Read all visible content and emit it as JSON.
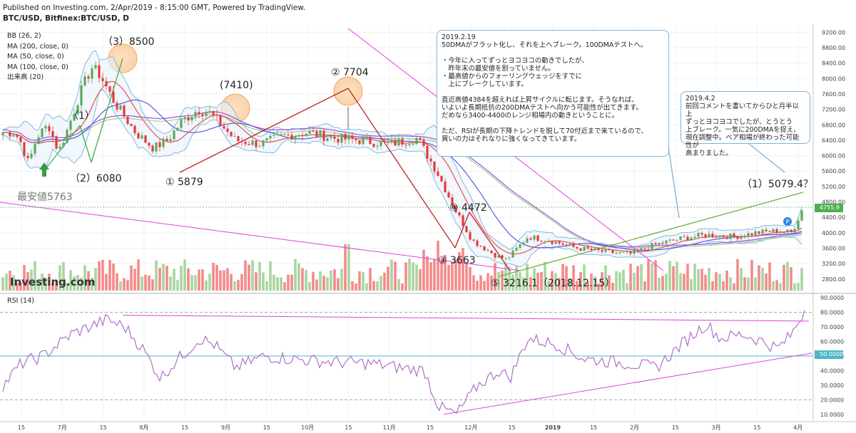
{
  "header": {
    "published": "Published on Investing.com, 2/Apr/2019 - 8:15:00 GMT, Powered by TradingView.",
    "symbol": "BTC/USD, Bitfinex:BTC/USD, D"
  },
  "indicators": [
    "BB (26, 2)",
    "MA (200, close, 0)",
    "MA (50, close, 0)",
    "MA (100, close, 0)",
    "出来高 (20)"
  ],
  "logo": "Investing.com",
  "rsi_label": "RSI (14)",
  "annotations": {
    "p3": "（3）8500",
    "p1": "（1）",
    "p2": "（2）6080",
    "low1": "① 5879",
    "p7410": "(7410)",
    "p7704": "② 7704",
    "p4472": "④ 4472",
    "p3663": "③ 3663",
    "p3216": "⑤ 3216.1（2018.12.15）",
    "target": "（1）5079.4？",
    "min": "最安値5763"
  },
  "notes": {
    "feb": "2019.2.19\n50DMAがフラット化し、それを上へブレーク。100DMAテストへ。\n\n・今年に入ってずっとヨコヨコの動きでしたが、\n　昨年末の最安値を割っていません。\n・最高値からのフォーリングウェッジをすでに\n　上にブレークしています。\n\n直近高値4384を超えれば上昇サイクルに転じます。そうなれば、\nいよいよ長期抵抗の200DMAテストへ向かう可能性が出てきます。\nだめなら3400-4400のレンジ相場内の動きということに。\n\nただ、RSIが長期の下降トレンドを脱して70付近まで来ているので、\n買いの力はそれなりに強くなってきています。",
    "apr": "2019.4.2\n前回コメントを書いてからひと月半以上\nずっとヨコヨコでしたが、とうとう\n上ブレーク。一気に200DMAを捉え、\n現在調整中。ベア相場が終わった可能性が\n高まりました。"
  },
  "price_tag": "4755.9",
  "rsi_tag": "50.0000",
  "colors": {
    "up": "#5ca85c",
    "down": "#e33b3b",
    "bb": "#7fb8e0",
    "ma200": "#9bd08a",
    "ma50": "#e85050",
    "ma100": "#5060d8",
    "rsi": "#b070c8",
    "magenta": "#e040e0",
    "trend_red": "#c02020",
    "trend_green": "#70b040"
  },
  "chart_data": {
    "type": "candlestick",
    "title": "BTC/USD, Bitfinex:BTC/USD, D",
    "y_ticks": [
      2800,
      3200,
      3600,
      4000,
      4400,
      4800,
      5200,
      5600,
      6000,
      6400,
      6800,
      7200,
      7600,
      8000,
      8400,
      8800,
      9200
    ],
    "ylim": [
      2500,
      9300
    ],
    "x_ticks": [
      "15",
      "7月",
      "15",
      "8月",
      "15",
      "9月",
      "15",
      "10月",
      "15",
      "11月",
      "15",
      "12月",
      "15",
      "2019",
      "15",
      "2月",
      "15",
      "3月",
      "15",
      "4月"
    ],
    "rsi_ticks": [
      10,
      20,
      30,
      40,
      50,
      60,
      70,
      80,
      90
    ],
    "rsi_ylim": [
      5,
      92
    ],
    "anchors": [
      [
        6600,
        20
      ],
      [
        6400,
        28
      ],
      [
        5800,
        40
      ],
      [
        6500,
        52
      ],
      [
        6800,
        68
      ],
      [
        6100,
        82
      ],
      [
        6700,
        95
      ],
      [
        7600,
        112
      ],
      [
        8300,
        128
      ],
      [
        8100,
        140
      ],
      [
        7400,
        160
      ],
      [
        6600,
        190
      ],
      [
        6200,
        215
      ],
      [
        6400,
        235
      ],
      [
        6900,
        255
      ],
      [
        7200,
        278
      ],
      [
        7100,
        295
      ],
      [
        6400,
        330
      ],
      [
        6300,
        365
      ],
      [
        6500,
        395
      ],
      [
        6600,
        430
      ],
      [
        6450,
        470
      ],
      [
        6400,
        505
      ],
      [
        6300,
        545
      ],
      [
        6450,
        585
      ],
      [
        5600,
        612
      ],
      [
        4600,
        638
      ],
      [
        3800,
        662
      ],
      [
        3400,
        696
      ],
      [
        3300,
        710
      ],
      [
        3900,
        740
      ],
      [
        3800,
        770
      ],
      [
        3600,
        810
      ],
      [
        3500,
        850
      ],
      [
        3450,
        885
      ],
      [
        3700,
        920
      ],
      [
        3850,
        955
      ],
      [
        3950,
        990
      ],
      [
        3900,
        1030
      ],
      [
        4000,
        1060
      ],
      [
        4050,
        1090
      ],
      [
        4000,
        1110
      ],
      [
        4750,
        1128
      ]
    ],
    "rsi_anchors": [
      [
        30,
        5
      ],
      [
        45,
        30
      ],
      [
        50,
        60
      ],
      [
        65,
        100
      ],
      [
        75,
        150
      ],
      [
        70,
        175
      ],
      [
        55,
        200
      ],
      [
        35,
        225
      ],
      [
        48,
        250
      ],
      [
        62,
        280
      ],
      [
        58,
        300
      ],
      [
        42,
        330
      ],
      [
        50,
        370
      ],
      [
        48,
        410
      ],
      [
        46,
        460
      ],
      [
        45,
        520
      ],
      [
        42,
        560
      ],
      [
        40,
        595
      ],
      [
        15,
        615
      ],
      [
        10,
        640
      ],
      [
        30,
        670
      ],
      [
        40,
        700
      ],
      [
        35,
        715
      ],
      [
        62,
        740
      ],
      [
        58,
        780
      ],
      [
        48,
        820
      ],
      [
        45,
        880
      ],
      [
        42,
        920
      ],
      [
        60,
        960
      ],
      [
        72,
        990
      ],
      [
        62,
        1010
      ],
      [
        65,
        1040
      ],
      [
        60,
        1070
      ],
      [
        55,
        1090
      ],
      [
        65,
        1110
      ],
      [
        82,
        1128
      ]
    ]
  }
}
